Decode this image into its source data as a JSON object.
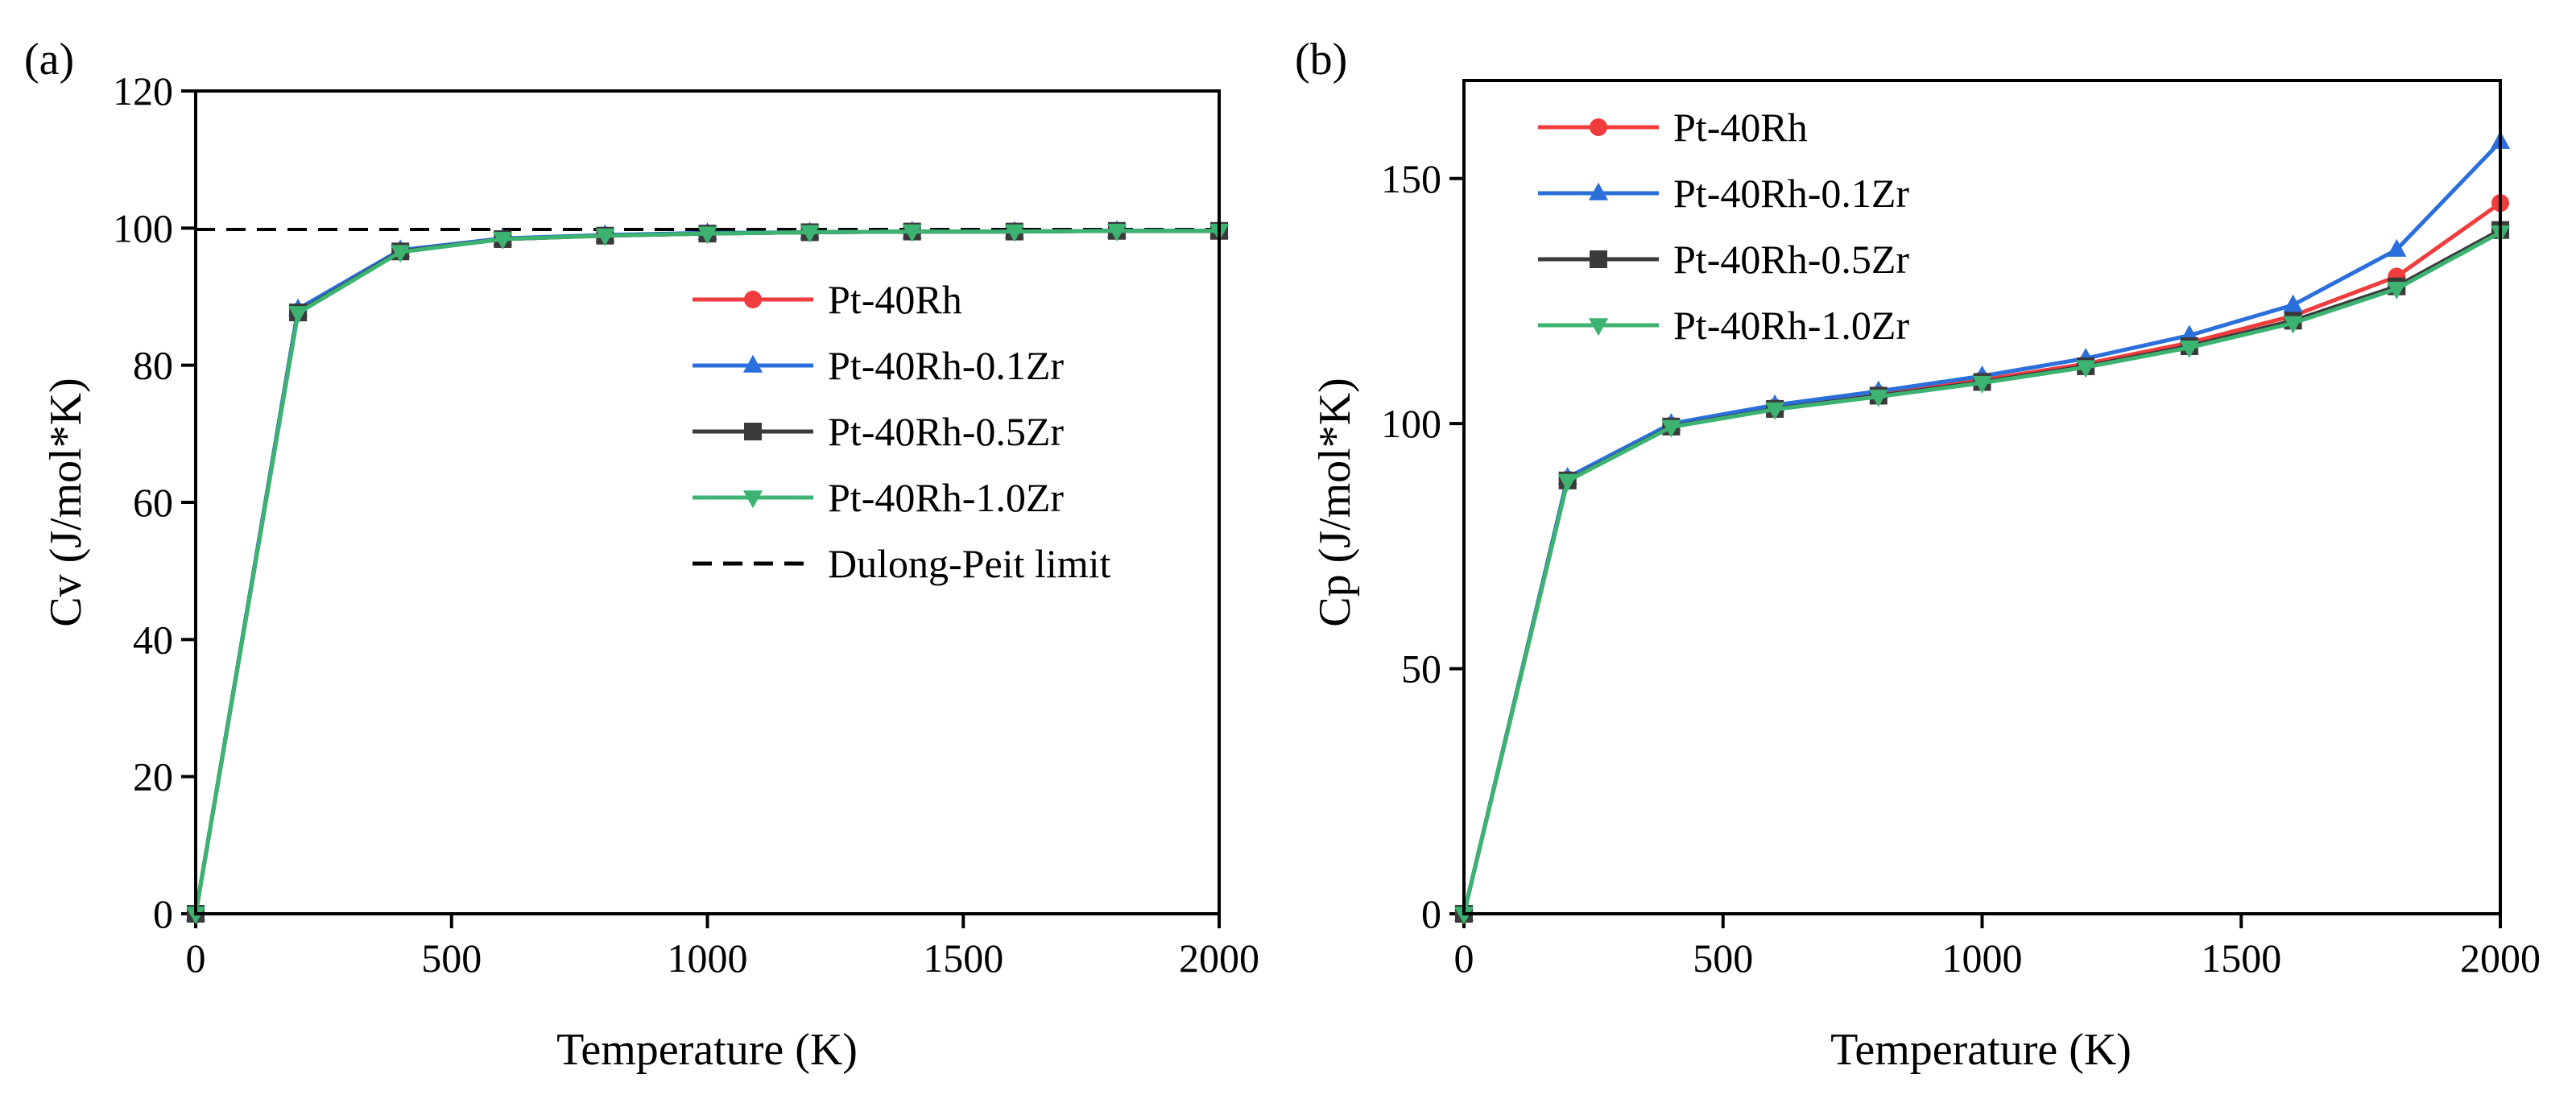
{
  "chart_data": [
    {
      "type": "line",
      "panel_label": "(a)",
      "xlabel": "Temperature (K)",
      "ylabel": "Cv (J/mol*K)",
      "xlim": [
        0,
        2000
      ],
      "ylim": [
        0,
        120
      ],
      "xticks": [
        0,
        500,
        1000,
        1500,
        2000
      ],
      "yticks": [
        0,
        20,
        40,
        60,
        80,
        100,
        120
      ],
      "x": [
        0,
        200,
        400,
        600,
        800,
        1000,
        1200,
        1400,
        1600,
        1800,
        2000
      ],
      "series": [
        {
          "name": "Pt-40Rh",
          "color": "#f03c3c",
          "marker": "circle",
          "values": [
            0,
            87.8,
            96.6,
            98.4,
            98.9,
            99.2,
            99.4,
            99.5,
            99.5,
            99.6,
            99.6
          ]
        },
        {
          "name": "Pt-40Rh-0.1Zr",
          "color": "#2a6fdb",
          "marker": "triangle-up",
          "values": [
            0,
            88.2,
            96.8,
            98.5,
            99.0,
            99.3,
            99.4,
            99.5,
            99.5,
            99.6,
            99.6
          ]
        },
        {
          "name": "Pt-40Rh-0.5Zr",
          "color": "#3a3a3a",
          "marker": "square",
          "values": [
            0,
            87.7,
            96.6,
            98.4,
            98.9,
            99.2,
            99.4,
            99.5,
            99.5,
            99.6,
            99.6
          ]
        },
        {
          "name": "Pt-40Rh-1.0Zr",
          "color": "#3cb371",
          "marker": "triangle-down",
          "values": [
            0,
            87.6,
            96.5,
            98.4,
            98.9,
            99.2,
            99.4,
            99.5,
            99.5,
            99.6,
            99.6
          ]
        }
      ],
      "reference_line": {
        "name": "Dulong-Peit limit",
        "value": 99.8,
        "style": "dashed",
        "color": "#000000"
      },
      "legend_position": "right-middle"
    },
    {
      "type": "line",
      "panel_label": "(b)",
      "xlabel": "Temperature (K)",
      "ylabel": "Cp (J/mol*K)",
      "xlim": [
        0,
        2000
      ],
      "ylim": [
        0,
        170
      ],
      "xticks": [
        0,
        500,
        1000,
        1500,
        2000
      ],
      "yticks": [
        0,
        50,
        100,
        150
      ],
      "x": [
        0,
        200,
        400,
        600,
        800,
        1000,
        1200,
        1400,
        1600,
        1800,
        2000
      ],
      "series": [
        {
          "name": "Pt-40Rh",
          "color": "#f03c3c",
          "marker": "circle",
          "values": [
            0,
            88.6,
            99.6,
            103.3,
            106.0,
            108.9,
            112.2,
            116.5,
            122.0,
            130.0,
            145.0
          ]
        },
        {
          "name": "Pt-40Rh-0.1Zr",
          "color": "#2a6fdb",
          "marker": "triangle-up",
          "values": [
            0,
            89.0,
            100.0,
            103.8,
            106.6,
            109.7,
            113.3,
            118.0,
            124.2,
            135.5,
            157.5
          ]
        },
        {
          "name": "Pt-40Rh-0.5Zr",
          "color": "#3a3a3a",
          "marker": "square",
          "values": [
            0,
            88.4,
            99.4,
            103.0,
            105.7,
            108.5,
            111.7,
            115.8,
            121.0,
            128.0,
            139.5
          ]
        },
        {
          "name": "Pt-40Rh-1.0Zr",
          "color": "#3cb371",
          "marker": "triangle-down",
          "values": [
            0,
            88.3,
            99.3,
            102.9,
            105.5,
            108.3,
            111.5,
            115.5,
            120.5,
            127.5,
            139.0
          ]
        }
      ],
      "legend_position": "top-left"
    }
  ]
}
